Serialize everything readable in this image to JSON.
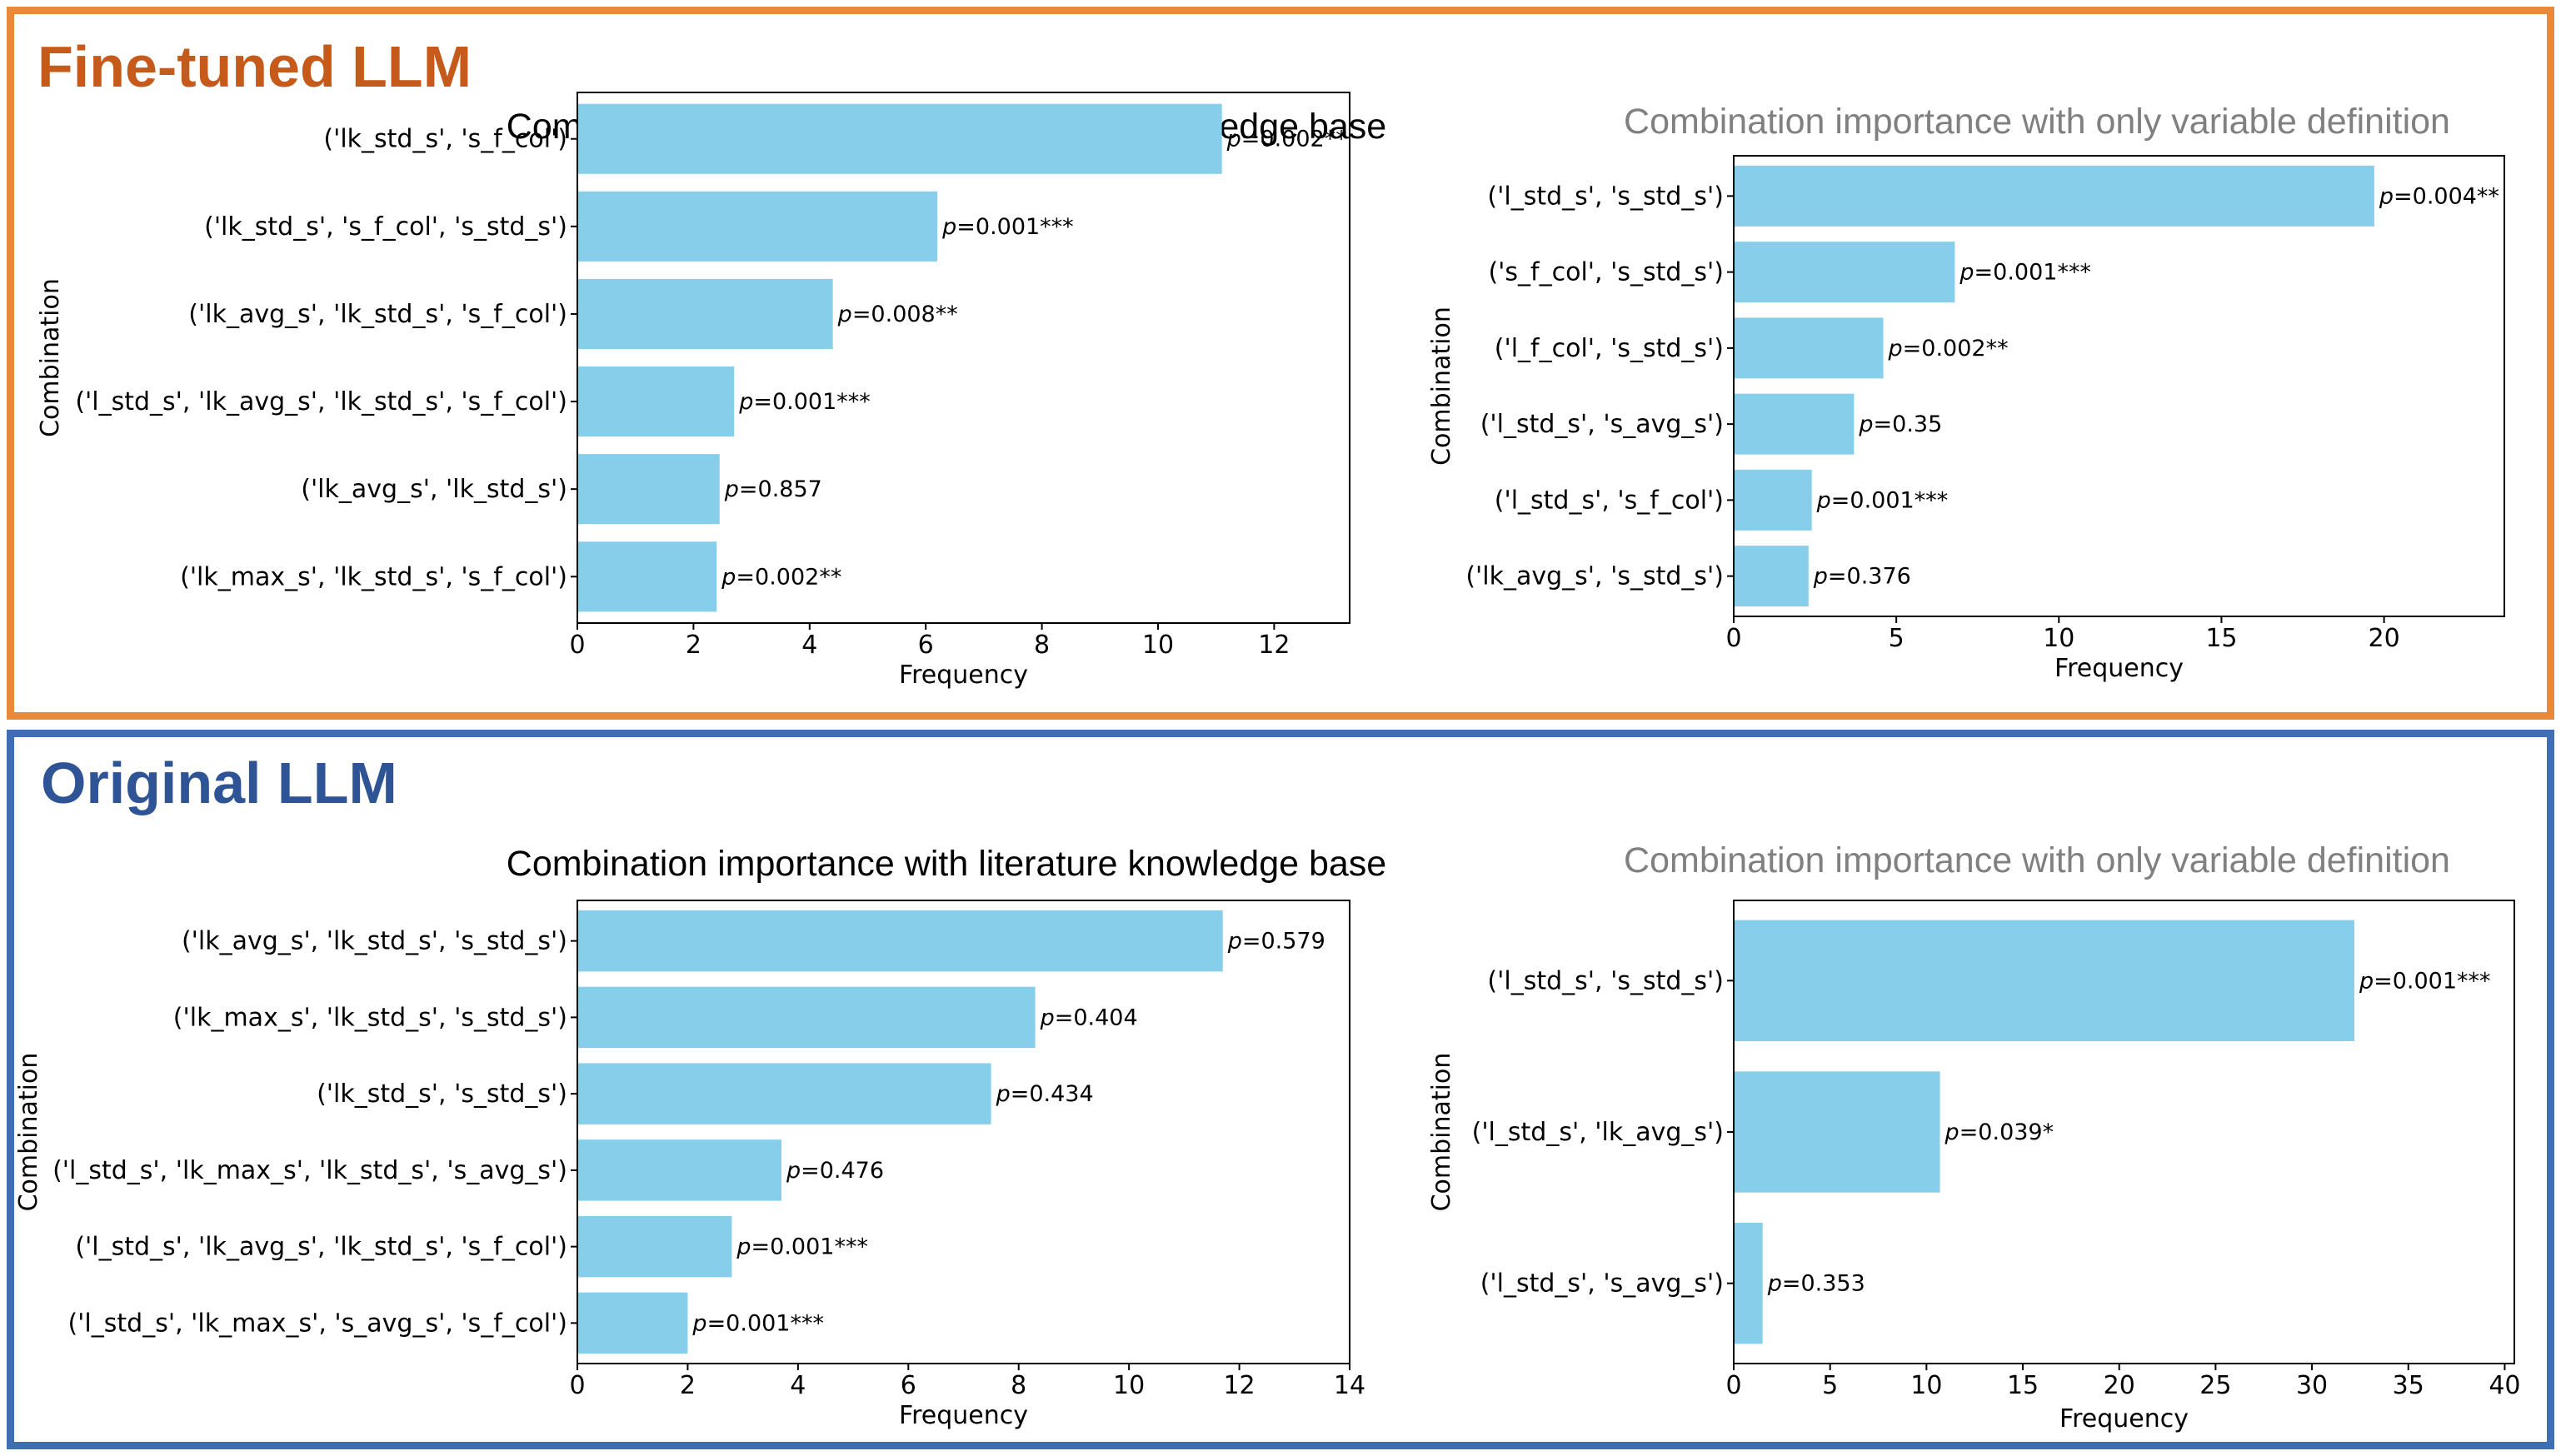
{
  "panels": [
    {
      "id": "finetuned",
      "title": "Fine-tuned LLM",
      "color": "#E98A3B",
      "title_color": "#C55A1A"
    },
    {
      "id": "original",
      "title": "Original LLM",
      "color": "#3F6EB5",
      "title_color": "#2F5496"
    }
  ],
  "colors": {
    "bar": "#87CEEB"
  },
  "chart_data": [
    {
      "type": "bar",
      "orientation": "horizontal",
      "panel": "Fine-tuned LLM",
      "title": "Combination importance with literature knowledge base",
      "title_color": "#000000",
      "xlabel": "Frequency",
      "ylabel": "Combination",
      "xlim": [
        0,
        13.3
      ],
      "xticks": [
        0,
        2,
        4,
        6,
        8,
        10,
        12
      ],
      "categories": [
        "('lk_std_s', 's_f_col')",
        "('lk_std_s', 's_f_col', 's_std_s')",
        "('lk_avg_s', 'lk_std_s', 's_f_col')",
        "('l_std_s', 'lk_avg_s', 'lk_std_s', 's_f_col')",
        "('lk_avg_s', 'lk_std_s')",
        "('lk_max_s', 'lk_std_s', 's_f_col')"
      ],
      "values": [
        11.1,
        6.2,
        4.4,
        2.7,
        2.45,
        2.4
      ],
      "p_labels": [
        "=0.002**",
        "=0.001***",
        "=0.008**",
        "=0.001***",
        "=0.857",
        "=0.002**"
      ]
    },
    {
      "type": "bar",
      "orientation": "horizontal",
      "panel": "Fine-tuned LLM",
      "title": "Combination importance with only variable definition",
      "title_color": "#808080",
      "xlabel": "Frequency",
      "ylabel": "Combination",
      "xlim": [
        0,
        23.7
      ],
      "xticks": [
        0,
        5,
        10,
        15,
        20
      ],
      "categories": [
        "('l_std_s', 's_std_s')",
        "('s_f_col', 's_std_s')",
        "('l_f_col', 's_std_s')",
        "('l_std_s', 's_avg_s')",
        "('l_std_s', 's_f_col')",
        "('lk_avg_s', 's_std_s')"
      ],
      "values": [
        19.7,
        6.8,
        4.6,
        3.7,
        2.4,
        2.3
      ],
      "p_labels": [
        "=0.004**",
        "=0.001***",
        "=0.002**",
        "=0.35",
        "=0.001***",
        "=0.376"
      ]
    },
    {
      "type": "bar",
      "orientation": "horizontal",
      "panel": "Original LLM",
      "title": "Combination importance with literature knowledge base",
      "title_color": "#000000",
      "xlabel": "Frequency",
      "ylabel": "Combination",
      "xlim": [
        0,
        14.0
      ],
      "xticks": [
        0,
        2,
        4,
        6,
        8,
        10,
        12,
        14
      ],
      "categories": [
        "('lk_avg_s', 'lk_std_s', 's_std_s')",
        "('lk_max_s', 'lk_std_s', 's_std_s')",
        "('lk_std_s', 's_std_s')",
        "('l_std_s', 'lk_max_s', 'lk_std_s', 's_avg_s')",
        "('l_std_s', 'lk_avg_s', 'lk_std_s', 's_f_col')",
        "('l_std_s', 'lk_max_s', 's_avg_s', 's_f_col')"
      ],
      "values": [
        11.7,
        8.3,
        7.5,
        3.7,
        2.8,
        2.0
      ],
      "p_labels": [
        "=0.579",
        "=0.404",
        "=0.434",
        "=0.476",
        "=0.001***",
        "=0.001***"
      ]
    },
    {
      "type": "bar",
      "orientation": "horizontal",
      "panel": "Original LLM",
      "title": "Combination importance with only variable definition",
      "title_color": "#808080",
      "xlabel": "Frequency",
      "ylabel": "Combination",
      "xlim": [
        0,
        40.5
      ],
      "xticks": [
        0,
        5,
        10,
        15,
        20,
        25,
        30,
        35,
        40
      ],
      "categories": [
        "('l_std_s', 's_std_s')",
        "('l_std_s', 'lk_avg_s')",
        "('l_std_s', 's_avg_s')"
      ],
      "values": [
        32.2,
        10.7,
        1.5
      ],
      "p_labels": [
        "=0.001***",
        "=0.039*",
        "=0.353"
      ]
    }
  ]
}
